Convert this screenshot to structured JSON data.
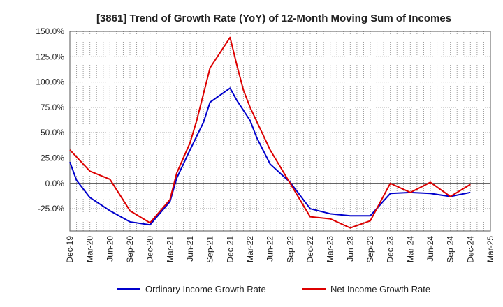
{
  "chart_data": {
    "type": "line",
    "title": "[3861]  Trend of Growth Rate (YoY) of 12-Month Moving Sum of Incomes",
    "xlabel": "",
    "ylabel": "",
    "ylim": [
      -47,
      150
    ],
    "yticks": [
      150,
      125,
      100,
      75,
      50,
      25,
      0,
      -25
    ],
    "ytick_labels": [
      "150.0%",
      "125.0%",
      "100.0%",
      "75.0%",
      "50.0%",
      "25.0%",
      "0.0%",
      "-25.0%"
    ],
    "x_labels": [
      "Dec-19",
      "Mar-20",
      "Jun-20",
      "Sep-20",
      "Dec-20",
      "Mar-21",
      "Jun-21",
      "Sep-21",
      "Dec-21",
      "Mar-22",
      "Jun-22",
      "Sep-22",
      "Dec-22",
      "Mar-23",
      "Jun-23",
      "Sep-23",
      "Dec-23",
      "Mar-24",
      "Jun-24",
      "Sep-24",
      "Dec-24",
      "Mar-25"
    ],
    "x": [
      "Dec-19",
      "Jan-20",
      "Feb-20",
      "Mar-20",
      "Apr-20",
      "May-20",
      "Jun-20",
      "Jul-20",
      "Aug-20",
      "Sep-20",
      "Oct-20",
      "Nov-20",
      "Dec-20",
      "Jan-21",
      "Feb-21",
      "Mar-21",
      "Apr-21",
      "May-21",
      "Jun-21",
      "Jul-21",
      "Aug-21",
      "Sep-21",
      "Oct-21",
      "Nov-21",
      "Dec-21",
      "Jan-22",
      "Feb-22",
      "Mar-22",
      "Apr-22",
      "May-22",
      "Jun-22",
      "Jul-22",
      "Aug-22",
      "Sep-22",
      "Oct-22",
      "Nov-22",
      "Dec-22",
      "Jan-23",
      "Feb-23",
      "Mar-23",
      "Apr-23",
      "May-23",
      "Jun-23",
      "Jul-23",
      "Aug-23",
      "Sep-23",
      "Oct-23",
      "Nov-23",
      "Dec-23",
      "Jan-24",
      "Feb-24",
      "Mar-24",
      "Apr-24",
      "May-24",
      "Jun-24",
      "Jul-24",
      "Aug-24",
      "Sep-24",
      "Oct-24",
      "Nov-24",
      "Dec-24"
    ],
    "series": [
      {
        "name": "Ordinary Income Growth Rate",
        "color": "#0000cc",
        "points": [
          [
            0,
            21
          ],
          [
            1,
            3
          ],
          [
            3,
            -14
          ],
          [
            6,
            -27
          ],
          [
            9,
            -38
          ],
          [
            12,
            -41
          ],
          [
            15,
            -18
          ],
          [
            16,
            5
          ],
          [
            18,
            33
          ],
          [
            20,
            60
          ],
          [
            21,
            80
          ],
          [
            24,
            94
          ],
          [
            25,
            82
          ],
          [
            27,
            62
          ],
          [
            28,
            45
          ],
          [
            30,
            19
          ],
          [
            33,
            1
          ],
          [
            36,
            -25
          ],
          [
            39,
            -30
          ],
          [
            42,
            -32
          ],
          [
            45,
            -32
          ],
          [
            48,
            -10
          ],
          [
            51,
            -9
          ],
          [
            54,
            -10
          ],
          [
            57,
            -13
          ],
          [
            60,
            -9
          ]
        ]
      },
      {
        "name": "Net Income Growth Rate",
        "color": "#dd0000",
        "points": [
          [
            0,
            33
          ],
          [
            3,
            12
          ],
          [
            6,
            4
          ],
          [
            9,
            -27
          ],
          [
            12,
            -39
          ],
          [
            15,
            -16
          ],
          [
            16,
            10
          ],
          [
            18,
            40
          ],
          [
            19,
            62
          ],
          [
            21,
            114
          ],
          [
            24,
            144
          ],
          [
            25,
            117
          ],
          [
            26,
            92
          ],
          [
            27,
            75
          ],
          [
            30,
            33
          ],
          [
            33,
            0
          ],
          [
            36,
            -33
          ],
          [
            39,
            -35
          ],
          [
            42,
            -44
          ],
          [
            45,
            -37
          ],
          [
            48,
            0
          ],
          [
            51,
            -9
          ],
          [
            54,
            1
          ],
          [
            57,
            -13
          ],
          [
            60,
            -1
          ]
        ]
      }
    ],
    "legend": {
      "position": "bottom-center",
      "entries": [
        "Ordinary Income Growth Rate",
        "Net Income Growth Rate"
      ]
    },
    "grid": true
  }
}
